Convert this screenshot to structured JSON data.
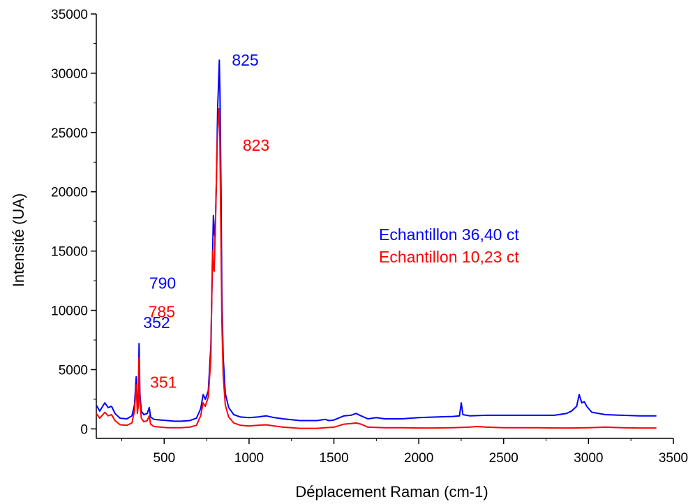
{
  "chart_data": {
    "type": "line",
    "title": "",
    "xlabel": "Déplacement Raman (cm-1)",
    "ylabel": "Intensité (UA)",
    "xlim": [
      100,
      3500
    ],
    "ylim": [
      -800,
      35000
    ],
    "x_ticks": [
      500,
      1000,
      1500,
      2000,
      2500,
      3000,
      3500
    ],
    "x_tick_labels": [
      "500",
      "1000",
      "1500",
      "2000",
      "2500",
      "3000",
      "3500"
    ],
    "y_ticks": [
      0,
      5000,
      10000,
      15000,
      20000,
      25000,
      30000,
      35000
    ],
    "y_tick_labels": [
      "0",
      "5000",
      "10000",
      "15000",
      "20000",
      "25000",
      "30000",
      "35000"
    ],
    "grid": false,
    "legend_position": "right",
    "series": [
      {
        "name": "Echantillon 36,40 ct",
        "color": "#0000ff",
        "points": [
          [
            100,
            2000
          ],
          [
            120,
            1500
          ],
          [
            150,
            2200
          ],
          [
            170,
            1800
          ],
          [
            190,
            1900
          ],
          [
            210,
            1300
          ],
          [
            240,
            900
          ],
          [
            280,
            850
          ],
          [
            310,
            1100
          ],
          [
            325,
            2000
          ],
          [
            335,
            4400
          ],
          [
            342,
            1900
          ],
          [
            348,
            2600
          ],
          [
            352,
            7200
          ],
          [
            357,
            3000
          ],
          [
            365,
            1500
          ],
          [
            380,
            1200
          ],
          [
            400,
            1300
          ],
          [
            412,
            1800
          ],
          [
            420,
            1000
          ],
          [
            440,
            800
          ],
          [
            480,
            750
          ],
          [
            520,
            700
          ],
          [
            560,
            650
          ],
          [
            600,
            650
          ],
          [
            650,
            700
          ],
          [
            690,
            900
          ],
          [
            715,
            1700
          ],
          [
            730,
            2900
          ],
          [
            742,
            2500
          ],
          [
            760,
            3200
          ],
          [
            775,
            7000
          ],
          [
            783,
            13000
          ],
          [
            790,
            18000
          ],
          [
            795,
            16500
          ],
          [
            800,
            16200
          ],
          [
            808,
            21000
          ],
          [
            815,
            27000
          ],
          [
            821,
            29500
          ],
          [
            825,
            31100
          ],
          [
            829,
            28000
          ],
          [
            835,
            20000
          ],
          [
            840,
            11000
          ],
          [
            848,
            6000
          ],
          [
            860,
            3000
          ],
          [
            880,
            1800
          ],
          [
            910,
            1200
          ],
          [
            950,
            1000
          ],
          [
            1000,
            950
          ],
          [
            1050,
            1000
          ],
          [
            1100,
            1100
          ],
          [
            1150,
            950
          ],
          [
            1200,
            850
          ],
          [
            1300,
            700
          ],
          [
            1400,
            700
          ],
          [
            1450,
            800
          ],
          [
            1470,
            700
          ],
          [
            1500,
            750
          ],
          [
            1560,
            1100
          ],
          [
            1600,
            1150
          ],
          [
            1630,
            1300
          ],
          [
            1660,
            1100
          ],
          [
            1700,
            850
          ],
          [
            1750,
            950
          ],
          [
            1800,
            850
          ],
          [
            1900,
            850
          ],
          [
            2000,
            950
          ],
          [
            2100,
            1000
          ],
          [
            2200,
            1050
          ],
          [
            2240,
            1100
          ],
          [
            2250,
            2200
          ],
          [
            2260,
            1200
          ],
          [
            2300,
            1100
          ],
          [
            2400,
            1150
          ],
          [
            2500,
            1150
          ],
          [
            2600,
            1150
          ],
          [
            2700,
            1150
          ],
          [
            2800,
            1150
          ],
          [
            2870,
            1300
          ],
          [
            2900,
            1500
          ],
          [
            2930,
            1900
          ],
          [
            2945,
            2900
          ],
          [
            2960,
            2200
          ],
          [
            2975,
            2300
          ],
          [
            2990,
            1900
          ],
          [
            3020,
            1400
          ],
          [
            3100,
            1200
          ],
          [
            3200,
            1150
          ],
          [
            3300,
            1100
          ],
          [
            3400,
            1100
          ]
        ]
      },
      {
        "name": "Echantillon 10,23 ct",
        "color": "#ff0000",
        "points": [
          [
            100,
            1300
          ],
          [
            120,
            900
          ],
          [
            150,
            1400
          ],
          [
            170,
            1100
          ],
          [
            190,
            1200
          ],
          [
            210,
            700
          ],
          [
            240,
            350
          ],
          [
            280,
            300
          ],
          [
            310,
            500
          ],
          [
            325,
            1500
          ],
          [
            335,
            3700
          ],
          [
            342,
            1300
          ],
          [
            348,
            2000
          ],
          [
            351,
            6000
          ],
          [
            357,
            2300
          ],
          [
            365,
            900
          ],
          [
            380,
            600
          ],
          [
            400,
            700
          ],
          [
            412,
            1100
          ],
          [
            420,
            400
          ],
          [
            440,
            200
          ],
          [
            480,
            150
          ],
          [
            520,
            100
          ],
          [
            560,
            100
          ],
          [
            600,
            100
          ],
          [
            650,
            150
          ],
          [
            690,
            300
          ],
          [
            715,
            1100
          ],
          [
            730,
            2200
          ],
          [
            742,
            1900
          ],
          [
            760,
            2700
          ],
          [
            775,
            6000
          ],
          [
            780,
            11000
          ],
          [
            785,
            15000
          ],
          [
            790,
            13500
          ],
          [
            795,
            13300
          ],
          [
            803,
            18000
          ],
          [
            812,
            24000
          ],
          [
            818,
            26000
          ],
          [
            823,
            27000
          ],
          [
            828,
            24500
          ],
          [
            834,
            17000
          ],
          [
            840,
            9000
          ],
          [
            848,
            4500
          ],
          [
            860,
            2000
          ],
          [
            880,
            1000
          ],
          [
            910,
            500
          ],
          [
            950,
            300
          ],
          [
            1000,
            250
          ],
          [
            1050,
            300
          ],
          [
            1100,
            350
          ],
          [
            1150,
            250
          ],
          [
            1200,
            150
          ],
          [
            1300,
            50
          ],
          [
            1400,
            50
          ],
          [
            1450,
            100
          ],
          [
            1500,
            150
          ],
          [
            1560,
            400
          ],
          [
            1600,
            450
          ],
          [
            1630,
            500
          ],
          [
            1660,
            400
          ],
          [
            1700,
            150
          ],
          [
            1800,
            100
          ],
          [
            1900,
            100
          ],
          [
            2000,
            80
          ],
          [
            2100,
            80
          ],
          [
            2200,
            100
          ],
          [
            2300,
            150
          ],
          [
            2340,
            200
          ],
          [
            2400,
            150
          ],
          [
            2500,
            100
          ],
          [
            2600,
            100
          ],
          [
            2700,
            100
          ],
          [
            2800,
            80
          ],
          [
            2900,
            80
          ],
          [
            3000,
            100
          ],
          [
            3100,
            150
          ],
          [
            3150,
            120
          ],
          [
            3200,
            100
          ],
          [
            3300,
            80
          ],
          [
            3400,
            80
          ]
        ]
      }
    ],
    "annotations": [
      {
        "text": "825",
        "x": 825,
        "y": 31100,
        "color": "#0000ff"
      },
      {
        "text": "823",
        "x": 823,
        "y": 27000,
        "color": "#ff0000"
      },
      {
        "text": "790",
        "x": 790,
        "y": 18000,
        "color": "#0000ff"
      },
      {
        "text": "785",
        "x": 785,
        "y": 15000,
        "color": "#ff0000"
      },
      {
        "text": "352",
        "x": 352,
        "y": 7200,
        "color": "#0000ff"
      },
      {
        "text": "351",
        "x": 351,
        "y": 6000,
        "color": "#ff0000"
      }
    ]
  }
}
